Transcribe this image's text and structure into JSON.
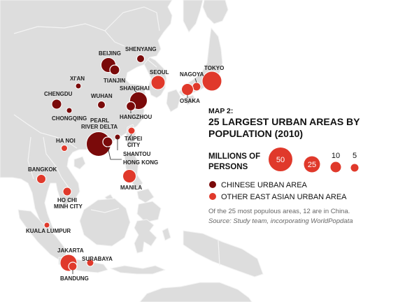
{
  "map": {
    "title_line1": "MAP 2:",
    "title_line2": "25 LARGEST URBAN AREAS BY",
    "title_line3": "POPULATION (2010)",
    "colors": {
      "land": "#dddddd",
      "sea": "#ffffff",
      "border": "#f4f4f4",
      "chinese": "#7a0a0a",
      "other": "#e0392b"
    },
    "legend": {
      "size_title_1": "MILLIONS OF",
      "size_title_2": "PERSONS",
      "sizes": [
        "50",
        "25",
        "10",
        "5"
      ],
      "chinese_label": "CHINESE URBAN AREA",
      "other_label": "OTHER EAST ASIAN URBAN AREA"
    },
    "note": "Of the 25 most populous areas, 12 are in China.",
    "source": "Source: Study team, incorporating WorldPopdata",
    "cities": [
      {
        "name": "SHENYANG",
        "type": "chinese"
      },
      {
        "name": "BEIJING",
        "type": "chinese"
      },
      {
        "name": "TIANJIN",
        "type": "chinese"
      },
      {
        "name": "XI'AN",
        "type": "chinese"
      },
      {
        "name": "SHANGHAI",
        "type": "chinese"
      },
      {
        "name": "CHENGDU",
        "type": "chinese"
      },
      {
        "name": "WUHAN",
        "type": "chinese"
      },
      {
        "name": "CHONGQING",
        "type": "chinese"
      },
      {
        "name": "HANGZHOU",
        "type": "chinese"
      },
      {
        "name": "PEARL RIVER DELTA",
        "type": "chinese"
      },
      {
        "name": "SHANTOU",
        "type": "chinese"
      },
      {
        "name": "HONG KONG",
        "type": "chinese"
      },
      {
        "name": "SEOUL",
        "type": "other"
      },
      {
        "name": "TOKYO",
        "type": "other"
      },
      {
        "name": "NAGOYA",
        "type": "other"
      },
      {
        "name": "OSAKA",
        "type": "other"
      },
      {
        "name": "TAIPEI CITY",
        "type": "other"
      },
      {
        "name": "HA NOI",
        "type": "other"
      },
      {
        "name": "BANGKOK",
        "type": "other"
      },
      {
        "name": "MANILA",
        "type": "other"
      },
      {
        "name": "HO CHI MINH CITY",
        "type": "other"
      },
      {
        "name": "KUALA LUMPUR",
        "type": "other"
      },
      {
        "name": "JAKARTA",
        "type": "other"
      },
      {
        "name": "SURABAYA",
        "type": "other"
      },
      {
        "name": "BANDUNG",
        "type": "other"
      }
    ]
  }
}
